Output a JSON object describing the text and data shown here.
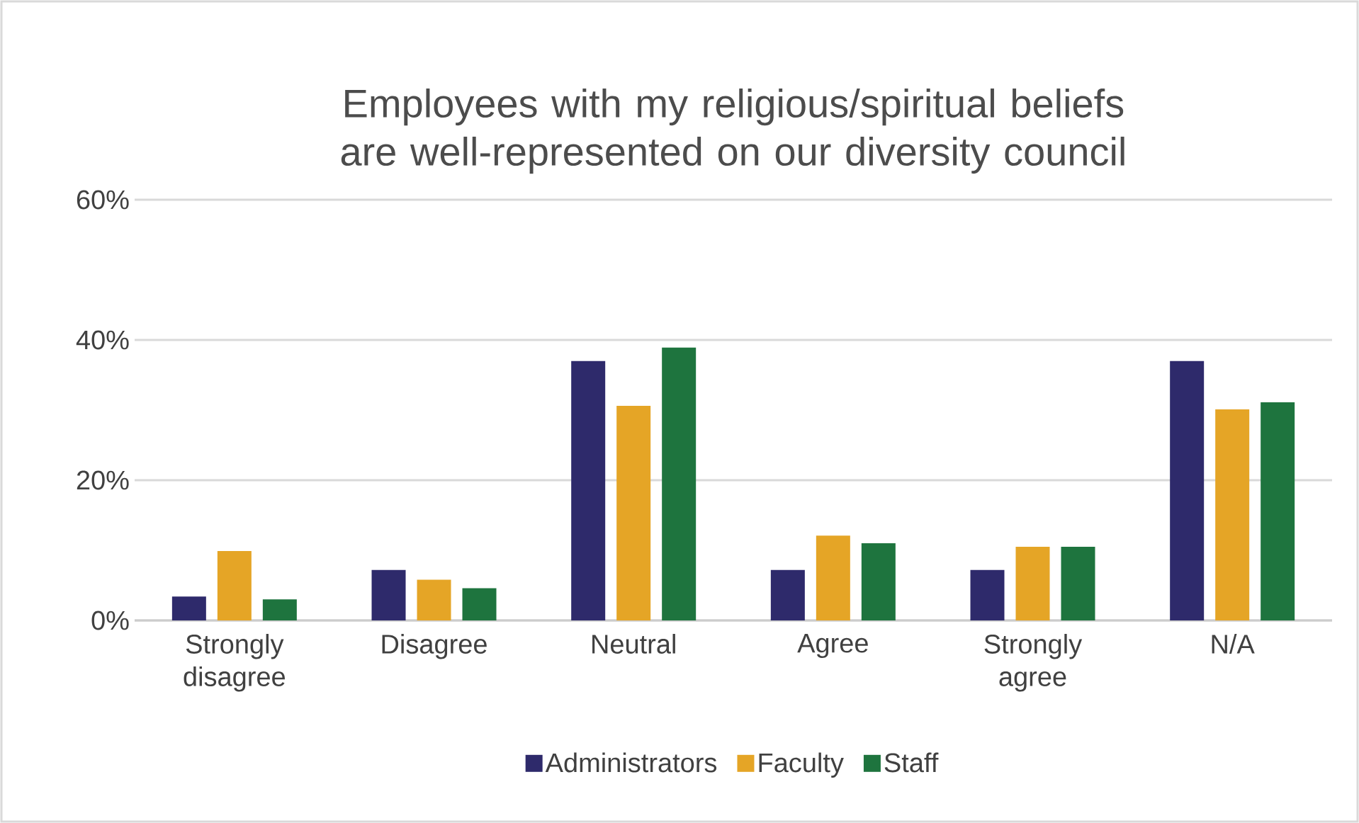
{
  "chart_data": {
    "type": "bar",
    "title": "Employees with my religious/spiritual beliefs are well-represented on our diversity council",
    "categories": [
      "Strongly disagree",
      "Disagree",
      "Neutral",
      "Agree",
      "Strongly agree",
      "N/A"
    ],
    "series": [
      {
        "name": "Administrators",
        "color": "#2e2a6b",
        "values": [
          3.4,
          7.2,
          37.0,
          7.2,
          7.2,
          37.0
        ]
      },
      {
        "name": "Faculty",
        "color": "#e5a526",
        "values": [
          9.9,
          5.8,
          30.6,
          12.1,
          10.5,
          30.1
        ]
      },
      {
        "name": "Staff",
        "color": "#1e743e",
        "values": [
          3.0,
          4.6,
          38.9,
          11.0,
          10.5,
          31.1
        ]
      }
    ],
    "ylim": [
      0,
      60
    ],
    "yticks": [
      {
        "value": 0,
        "label": "0%"
      },
      {
        "value": 20,
        "label": "20%"
      },
      {
        "value": 40,
        "label": "40%"
      },
      {
        "value": 60,
        "label": "60%"
      }
    ],
    "grid": "y",
    "legend": "bottom"
  }
}
